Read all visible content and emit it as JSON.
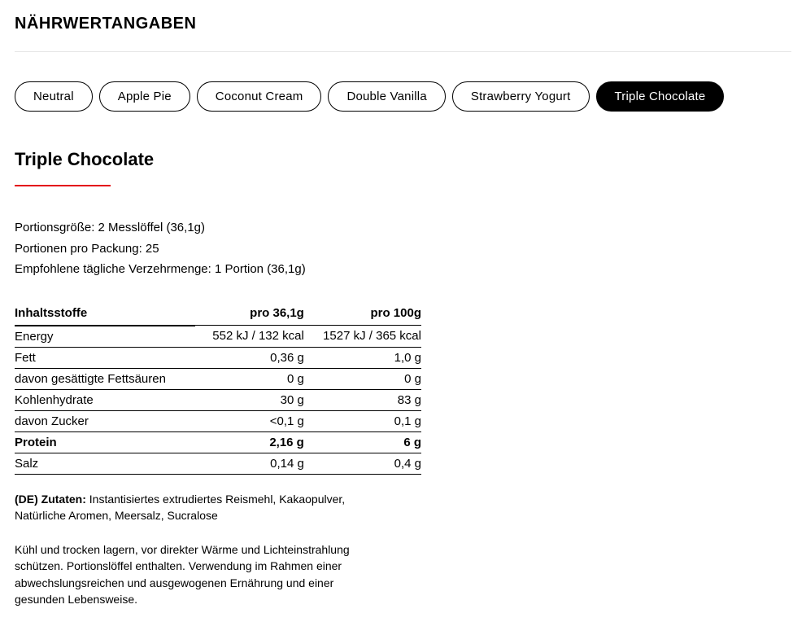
{
  "section_title": "NÄHRWERTANGABEN",
  "tabs": [
    {
      "label": "Neutral",
      "active": false
    },
    {
      "label": "Apple Pie",
      "active": false
    },
    {
      "label": "Coconut Cream",
      "active": false
    },
    {
      "label": "Double Vanilla",
      "active": false
    },
    {
      "label": "Strawberry Yogurt",
      "active": false
    },
    {
      "label": "Triple Chocolate",
      "active": true
    }
  ],
  "flavor_title": "Triple Chocolate",
  "accent_color": "#e30613",
  "meta": {
    "serving_size": "Portionsgröße: 2 Messlöffel (36,1g)",
    "servings_per_pack": "Portionen pro Packung: 25",
    "recommended_daily": "Empfohlene tägliche Verzehrmenge: 1 Portion (36,1g)"
  },
  "table": {
    "headers": [
      "Inhaltsstoffe",
      "pro 36,1g",
      "pro 100g"
    ],
    "rows": [
      {
        "name": "Energy",
        "per_serving": "552 kJ / 132 kcal",
        "per_100g": "1527 kJ / 365 kcal",
        "bold": false
      },
      {
        "name": "Fett",
        "per_serving": "0,36 g",
        "per_100g": "1,0 g",
        "bold": false
      },
      {
        "name": "davon gesättigte Fettsäuren",
        "per_serving": "0 g",
        "per_100g": "0 g",
        "bold": false
      },
      {
        "name": "Kohlenhydrate",
        "per_serving": "30 g",
        "per_100g": "83 g",
        "bold": false
      },
      {
        "name": "davon Zucker",
        "per_serving": "<0,1 g",
        "per_100g": "0,1 g",
        "bold": false
      },
      {
        "name": "Protein",
        "per_serving": "2,16 g",
        "per_100g": "6 g",
        "bold": true
      },
      {
        "name": "Salz",
        "per_serving": "0,14 g",
        "per_100g": "0,4 g",
        "bold": false
      }
    ]
  },
  "ingredients_label": "(DE) Zutaten:",
  "ingredients_text": "Instantisiertes extrudiertes Reismehl, Kakaopulver, Natürliche Aromen, Meersalz, Sucralose",
  "storage_text": "Kühl und trocken lagern, vor direkter Wärme und Lichteinstrahlung schützen. Portionslöffel enthalten. Verwendung im Rahmen einer abwechslungsreichen und ausgewogenen Ernährung und einer gesunden Lebensweise."
}
